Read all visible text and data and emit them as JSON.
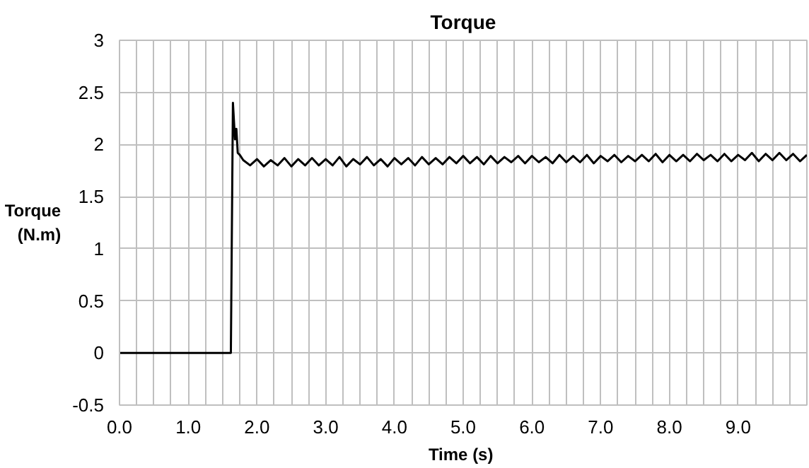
{
  "chart_data": {
    "type": "line",
    "title": "Torque",
    "xlabel": "Time  (s)",
    "ylabel": "Torque\n(N.m)",
    "xlim": [
      0,
      10
    ],
    "ylim": [
      -0.5,
      3
    ],
    "xticks": [
      {
        "value": 0,
        "label": "0.0"
      },
      {
        "value": 0.25,
        "label": null
      },
      {
        "value": 0.5,
        "label": null
      },
      {
        "value": 0.75,
        "label": null
      },
      {
        "value": 1,
        "label": "1.0"
      },
      {
        "value": 1.25,
        "label": null
      },
      {
        "value": 1.5,
        "label": null
      },
      {
        "value": 1.75,
        "label": null
      },
      {
        "value": 2,
        "label": "2.0"
      },
      {
        "value": 2.25,
        "label": null
      },
      {
        "value": 2.5,
        "label": null
      },
      {
        "value": 2.75,
        "label": null
      },
      {
        "value": 3,
        "label": "3.0"
      },
      {
        "value": 3.25,
        "label": null
      },
      {
        "value": 3.5,
        "label": null
      },
      {
        "value": 3.75,
        "label": null
      },
      {
        "value": 4,
        "label": "4.0"
      },
      {
        "value": 4.25,
        "label": null
      },
      {
        "value": 4.5,
        "label": null
      },
      {
        "value": 4.75,
        "label": null
      },
      {
        "value": 5,
        "label": "5.0"
      },
      {
        "value": 5.25,
        "label": null
      },
      {
        "value": 5.5,
        "label": null
      },
      {
        "value": 5.75,
        "label": null
      },
      {
        "value": 6,
        "label": "6.0"
      },
      {
        "value": 6.25,
        "label": null
      },
      {
        "value": 6.5,
        "label": null
      },
      {
        "value": 6.75,
        "label": null
      },
      {
        "value": 7,
        "label": "7.0"
      },
      {
        "value": 7.25,
        "label": null
      },
      {
        "value": 7.5,
        "label": null
      },
      {
        "value": 7.75,
        "label": null
      },
      {
        "value": 8,
        "label": "8.0"
      },
      {
        "value": 8.25,
        "label": null
      },
      {
        "value": 8.5,
        "label": null
      },
      {
        "value": 8.75,
        "label": null
      },
      {
        "value": 9,
        "label": "9.0"
      },
      {
        "value": 9.25,
        "label": null
      },
      {
        "value": 9.5,
        "label": null
      },
      {
        "value": 9.75,
        "label": null
      },
      {
        "value": 10,
        "label": null
      }
    ],
    "yticks": [
      -0.5,
      0,
      0.5,
      1,
      1.5,
      2,
      2.5,
      3
    ],
    "grid": true,
    "marker": "none",
    "line_style": "solid",
    "series": [
      {
        "color": "#000000",
        "x": [
          0,
          1.62,
          1.65,
          1.68,
          1.7,
          1.72,
          1.75,
          1.8,
          1.9,
          2.0,
          2.1,
          2.2,
          2.3,
          2.4,
          2.5,
          2.6,
          2.7,
          2.8,
          2.9,
          3.0,
          3.1,
          3.2,
          3.3,
          3.4,
          3.5,
          3.6,
          3.7,
          3.8,
          3.9,
          4.0,
          4.1,
          4.2,
          4.3,
          4.4,
          4.5,
          4.6,
          4.7,
          4.8,
          4.9,
          5.0,
          5.1,
          5.2,
          5.3,
          5.4,
          5.5,
          5.6,
          5.7,
          5.8,
          5.9,
          6.0,
          6.1,
          6.2,
          6.3,
          6.4,
          6.5,
          6.6,
          6.7,
          6.8,
          6.9,
          7.0,
          7.1,
          7.2,
          7.3,
          7.4,
          7.5,
          7.6,
          7.7,
          7.8,
          7.9,
          8.0,
          8.1,
          8.2,
          8.3,
          8.4,
          8.5,
          8.6,
          8.7,
          8.8,
          8.9,
          9.0,
          9.1,
          9.2,
          9.3,
          9.4,
          9.5,
          9.6,
          9.7,
          9.8,
          9.9,
          10.0
        ],
        "values": [
          0,
          0,
          2.4,
          2.05,
          2.15,
          1.92,
          1.9,
          1.85,
          1.8,
          1.86,
          1.79,
          1.85,
          1.8,
          1.87,
          1.79,
          1.86,
          1.8,
          1.87,
          1.8,
          1.86,
          1.8,
          1.88,
          1.79,
          1.86,
          1.81,
          1.88,
          1.8,
          1.86,
          1.79,
          1.87,
          1.81,
          1.87,
          1.8,
          1.88,
          1.81,
          1.87,
          1.81,
          1.88,
          1.82,
          1.89,
          1.82,
          1.88,
          1.81,
          1.89,
          1.82,
          1.88,
          1.83,
          1.89,
          1.82,
          1.89,
          1.83,
          1.88,
          1.82,
          1.9,
          1.83,
          1.89,
          1.83,
          1.9,
          1.82,
          1.89,
          1.84,
          1.9,
          1.83,
          1.89,
          1.84,
          1.9,
          1.84,
          1.91,
          1.83,
          1.9,
          1.84,
          1.9,
          1.84,
          1.91,
          1.85,
          1.9,
          1.84,
          1.91,
          1.84,
          1.9,
          1.85,
          1.92,
          1.84,
          1.91,
          1.85,
          1.92,
          1.85,
          1.91,
          1.84,
          1.9
        ]
      }
    ]
  }
}
